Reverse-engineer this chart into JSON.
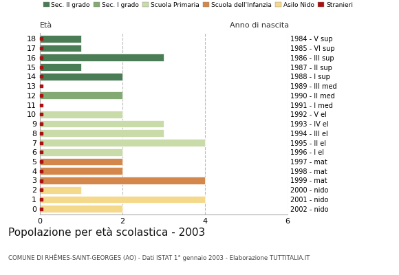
{
  "ages": [
    18,
    17,
    16,
    15,
    14,
    13,
    12,
    11,
    10,
    9,
    8,
    7,
    6,
    5,
    4,
    3,
    2,
    1,
    0
  ],
  "anni_nascita": [
    "1984 - V sup",
    "1985 - VI sup",
    "1986 - III sup",
    "1987 - II sup",
    "1988 - I sup",
    "1989 - III med",
    "1990 - II med",
    "1991 - I med",
    "1992 - V el",
    "1993 - IV el",
    "1994 - III el",
    "1995 - II el",
    "1996 - I el",
    "1997 - mat",
    "1998 - mat",
    "1999 - mat",
    "2000 - nido",
    "2001 - nido",
    "2002 - nido"
  ],
  "bar_values": [
    1,
    1,
    3,
    1,
    2,
    0,
    2,
    0,
    2,
    3,
    3,
    4,
    2,
    2,
    2,
    4,
    1,
    4,
    2
  ],
  "categories": {
    "sec2": [
      18,
      17,
      16,
      15,
      14
    ],
    "sec1": [
      13,
      12,
      11
    ],
    "primaria": [
      10,
      9,
      8,
      7,
      6
    ],
    "infanzia": [
      5,
      4,
      3
    ],
    "nido": [
      2,
      1,
      0
    ]
  },
  "colors": {
    "sec2": "#4a7c55",
    "sec1": "#82aa72",
    "primaria": "#c8dba8",
    "infanzia": "#d4874a",
    "nido": "#f5d98b",
    "stranieri": "#aa1111"
  },
  "legend_labels": [
    "Sec. II grado",
    "Sec. I grado",
    "Scuola Primaria",
    "Scuola dell'Infanzia",
    "Asilo Nido",
    "Stranieri"
  ],
  "title": "Popolazione per età scolastica - 2003",
  "subtitle": "COMUNE DI RHÊMES-SAINT-GEORGES (AO) - Dati ISTAT 1° gennaio 2003 - Elaborazione TUTTITALIA.IT",
  "label_eta": "Età",
  "label_anno": "Anno di nascita",
  "xlim": [
    0,
    6
  ],
  "xticks": [
    0,
    2,
    4,
    6
  ],
  "bg_color": "#ffffff",
  "grid_color": "#bbbbbb"
}
